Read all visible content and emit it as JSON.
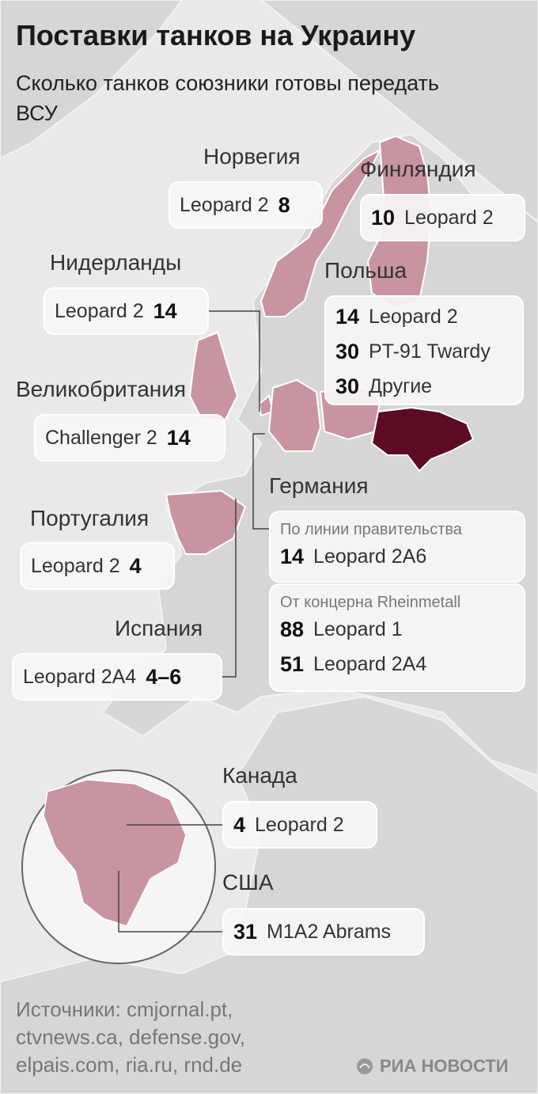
{
  "header": {
    "title": "Поставки танков на Украину",
    "subtitle": "Сколько танков союзники готовы передать ВСУ"
  },
  "countries": [
    {
      "name": "Норвегия",
      "items": [
        {
          "model": "Leopard 2",
          "count": "8"
        }
      ]
    },
    {
      "name": "Финляндия",
      "items": [
        {
          "count": "10",
          "model": "Leopard 2"
        }
      ]
    },
    {
      "name": "Нидерланды",
      "items": [
        {
          "model": "Leopard 2",
          "count": "14"
        }
      ]
    },
    {
      "name": "Польша",
      "items": [
        {
          "count": "14",
          "model": "Leopard 2"
        },
        {
          "count": "30",
          "model": "PT-91 Twardy"
        },
        {
          "count": "30",
          "model": "Другие"
        }
      ]
    },
    {
      "name": "Великобритания",
      "items": [
        {
          "model": "Challenger 2",
          "count": "14"
        }
      ]
    },
    {
      "name": "Германия",
      "groups": [
        {
          "heading": "По линии правительства",
          "items": [
            {
              "count": "14",
              "model": "Leopard 2A6"
            }
          ]
        },
        {
          "heading": "От концерна Rheinmetall",
          "items": [
            {
              "count": "88",
              "model": "Leopard 1"
            },
            {
              "count": "51",
              "model": "Leopard 2A4"
            }
          ]
        }
      ]
    },
    {
      "name": "Португалия",
      "items": [
        {
          "model": "Leopard 2",
          "count": "4"
        }
      ]
    },
    {
      "name": "Испания",
      "items": [
        {
          "model": "Leopard 2A4",
          "count": "4–6"
        }
      ]
    },
    {
      "name": "Канада",
      "items": [
        {
          "count": "4",
          "model": "Leopard 2"
        }
      ]
    },
    {
      "name": "США",
      "items": [
        {
          "count": "31",
          "model": "M1A2 Abrams"
        }
      ]
    }
  ],
  "sources": [
    "Источники: cmjornal.pt,",
    "ctvnews.ca, defense.gov,",
    "elpais.com, ria.ru, rnd.de"
  ],
  "logo": "РИА НОВОСТИ"
}
